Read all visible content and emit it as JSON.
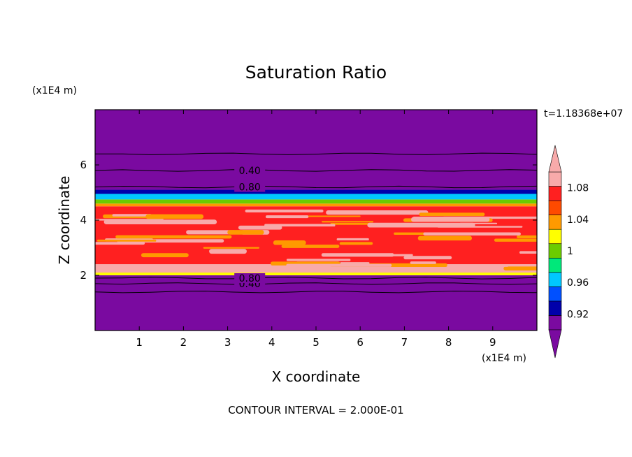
{
  "chart_data": {
    "type": "heatmap",
    "title": "Saturation Ratio",
    "xlabel": "X coordinate",
    "ylabel": "Z coordinate",
    "x_unit_label": "(x1E4 m)",
    "y_unit_label": "(x1E4 m)",
    "time_label": "t=1.18368e+07",
    "footer": "CONTOUR INTERVAL = 2.000E-01",
    "xlim": [
      0,
      10
    ],
    "ylim": [
      0,
      8
    ],
    "x_ticks": [
      "1",
      "2",
      "3",
      "4",
      "5",
      "6",
      "7",
      "8",
      "9"
    ],
    "y_ticks": [
      "2",
      "4",
      "6"
    ],
    "x_tick_values": [
      1,
      2,
      3,
      4,
      5,
      6,
      7,
      8,
      9
    ],
    "y_tick_values": [
      2,
      4,
      6
    ],
    "colorbar": {
      "levels": [
        0.9,
        0.92,
        0.94,
        0.96,
        0.98,
        1.0,
        1.02,
        1.04,
        1.06,
        1.08,
        1.1
      ],
      "colors": [
        "#7a0aa0",
        "#0000aa",
        "#0050ff",
        "#00c8ff",
        "#00e87a",
        "#6ccc00",
        "#ffff00",
        "#ff9a00",
        "#ff4a00",
        "#ff2020",
        "#f8aaaa"
      ],
      "labels": [
        "0.92",
        "0.96",
        "1",
        "1.04",
        "1.08"
      ],
      "label_values": [
        0.92,
        0.96,
        1.0,
        1.04,
        1.08
      ],
      "extend": "both"
    },
    "bands": [
      {
        "z_bottom": 0.0,
        "z_top": 2.0,
        "value": 0.4,
        "color": "#7a0aa0"
      },
      {
        "z_bottom": 2.0,
        "z_top": 2.1,
        "value": 1.03,
        "color": "#ffff00"
      },
      {
        "z_bottom": 2.1,
        "z_top": 4.5,
        "value": 1.09,
        "color": "#ff2020"
      },
      {
        "z_bottom": 4.5,
        "z_top": 4.6,
        "value": 1.05,
        "color": "#ff9a00"
      },
      {
        "z_bottom": 4.6,
        "z_top": 4.75,
        "value": 0.99,
        "color": "#6ccc00"
      },
      {
        "z_bottom": 4.75,
        "z_top": 4.95,
        "value": 0.96,
        "color": "#00c8ff"
      },
      {
        "z_bottom": 4.95,
        "z_top": 5.1,
        "value": 0.93,
        "color": "#0000aa"
      },
      {
        "z_bottom": 5.1,
        "z_top": 8.0,
        "value": 0.4,
        "color": "#7a0aa0"
      }
    ],
    "contours": [
      {
        "z": 1.4,
        "label": ""
      },
      {
        "z": 1.7,
        "label": "0.40"
      },
      {
        "z": 1.9,
        "label": "0.80"
      },
      {
        "z": 5.2,
        "label": "0.80"
      },
      {
        "z": 5.8,
        "label": "0.40"
      },
      {
        "z": 6.4,
        "label": ""
      }
    ]
  }
}
